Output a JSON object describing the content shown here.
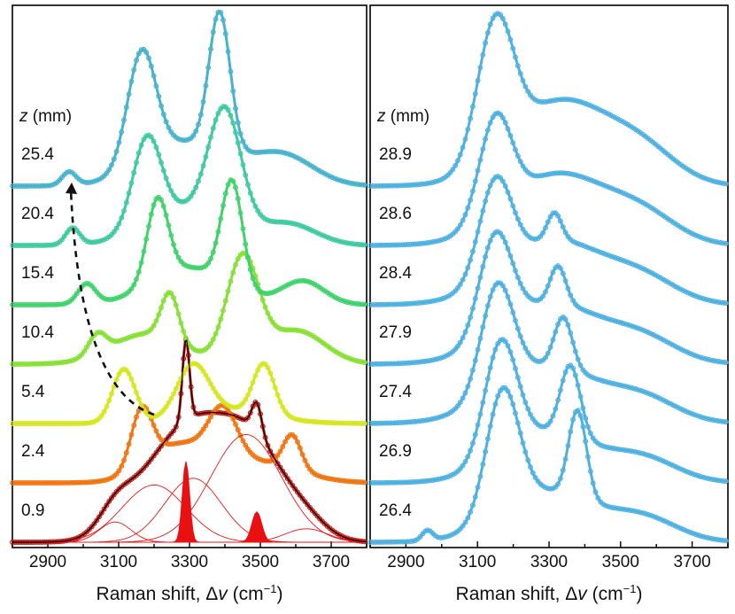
{
  "figure": {
    "xlabel": "Raman shift, Δν (cm⁻¹)"
  },
  "chart_data": [
    {
      "type": "line",
      "title": "",
      "xlabel_parts": {
        "main": "Raman shift, Δ",
        "var": "v",
        "unit_pre": " (cm",
        "exp": "−1",
        "unit_post": ")"
      },
      "ylabel": "z (mm)",
      "zlabel": {
        "var": "z",
        "unit": " (mm)"
      },
      "xlim": [
        2800,
        3800
      ],
      "xticks": [
        2900,
        3100,
        3300,
        3500,
        3700
      ],
      "curve_labels": [
        "0.9",
        "2.4",
        "5.4",
        "10.4",
        "15.4",
        "20.4",
        "25.4"
      ],
      "series": [
        {
          "name": "0.9",
          "color": "#c8130c",
          "baseline": 0,
          "peaks": [
            [
              3090,
              45,
              0.12
            ],
            [
              3200,
              90,
              0.34
            ],
            [
              3310,
              80,
              0.38
            ],
            [
              3460,
              100,
              0.64
            ],
            [
              3290,
              10,
              0.48
            ],
            [
              3490,
              14,
              0.18
            ],
            [
              3630,
              60,
              0.08
            ]
          ]
        },
        {
          "name": "2.4",
          "color": "#f07410",
          "baseline": 1,
          "peaks": [
            [
              3165,
              30,
              0.34
            ],
            [
              3270,
              90,
              0.22
            ],
            [
              3395,
              40,
              0.3
            ],
            [
              3590,
              25,
              0.2
            ],
            [
              3500,
              110,
              0.12
            ]
          ]
        },
        {
          "name": "5.4",
          "color": "#d6e61e",
          "baseline": 2,
          "peaks": [
            [
              3115,
              32,
              0.32
            ],
            [
              3310,
              45,
              0.3
            ],
            [
              3510,
              30,
              0.3
            ],
            [
              3410,
              120,
              0.08
            ]
          ]
        },
        {
          "name": "10.4",
          "color": "#86e034",
          "baseline": 3,
          "peaks": [
            [
              3040,
              25,
              0.12
            ],
            [
              3180,
              100,
              0.18
            ],
            [
              3245,
              25,
              0.28
            ],
            [
              3450,
              45,
              0.62
            ],
            [
              3600,
              80,
              0.2
            ]
          ]
        },
        {
          "name": "15.4",
          "color": "#3fd26a",
          "baseline": 4,
          "peaks": [
            [
              3010,
              25,
              0.12
            ],
            [
              3210,
              30,
              0.48
            ],
            [
              3300,
              110,
              0.22
            ],
            [
              3420,
              30,
              0.62
            ],
            [
              3620,
              60,
              0.14
            ]
          ]
        },
        {
          "name": "20.4",
          "color": "#3ec9a0",
          "baseline": 5,
          "peaks": [
            [
              2970,
              20,
              0.1
            ],
            [
              3180,
              40,
              0.52
            ],
            [
              3300,
              120,
              0.22
            ],
            [
              3400,
              45,
              0.66
            ],
            [
              3580,
              80,
              0.12
            ]
          ]
        },
        {
          "name": "25.4",
          "color": "#46b2cc",
          "baseline": 6,
          "peaks": [
            [
              2960,
              20,
              0.08
            ],
            [
              3165,
              40,
              0.66
            ],
            [
              3290,
              120,
              0.26
            ],
            [
              3385,
              30,
              0.82
            ],
            [
              3560,
              90,
              0.18
            ]
          ]
        }
      ],
      "annotation": {
        "type": "dashed-arrow",
        "from_curve": "2.4",
        "to_curve": "25.4"
      }
    },
    {
      "type": "line",
      "title": "",
      "xlabel_parts": {
        "main": "Raman shift, Δ",
        "var": "v",
        "unit_pre": "  (cm",
        "exp": "−1",
        "unit_post": ")"
      },
      "ylabel": "z (mm)",
      "zlabel": {
        "var": "z",
        "unit": " (mm)"
      },
      "xlim": [
        2800,
        3800
      ],
      "xticks": [
        2900,
        3100,
        3300,
        3500,
        3700
      ],
      "curve_labels": [
        "26.4",
        "26.9",
        "27.4",
        "27.9",
        "28.4",
        "28.6",
        "28.9"
      ],
      "series": [
        {
          "name": "26.4",
          "color": "#4db0e0",
          "baseline": 0,
          "peaks": [
            [
              3170,
              45,
              0.72
            ],
            [
              3290,
              130,
              0.3
            ],
            [
              3380,
              25,
              0.52
            ],
            [
              3560,
              100,
              0.14
            ],
            [
              2960,
              15,
              0.06
            ]
          ]
        },
        {
          "name": "26.9",
          "color": "#4db0e0",
          "baseline": 1,
          "peaks": [
            [
              3165,
              45,
              0.66
            ],
            [
              3290,
              130,
              0.3
            ],
            [
              3360,
              28,
              0.42
            ],
            [
              3560,
              100,
              0.14
            ]
          ]
        },
        {
          "name": "27.4",
          "color": "#4db0e0",
          "baseline": 2,
          "peaks": [
            [
              3155,
              45,
              0.62
            ],
            [
              3290,
              140,
              0.34
            ],
            [
              3340,
              25,
              0.3
            ],
            [
              3560,
              100,
              0.14
            ]
          ]
        },
        {
          "name": "27.9",
          "color": "#4db0e0",
          "baseline": 3,
          "peaks": [
            [
              3150,
              45,
              0.58
            ],
            [
              3300,
              140,
              0.36
            ],
            [
              3325,
              22,
              0.22
            ],
            [
              3560,
              100,
              0.14
            ]
          ]
        },
        {
          "name": "28.4",
          "color": "#4db0e0",
          "baseline": 4,
          "peaks": [
            [
              3150,
              45,
              0.56
            ],
            [
              3310,
              140,
              0.38
            ],
            [
              3315,
              20,
              0.16
            ],
            [
              3560,
              100,
              0.14
            ]
          ]
        },
        {
          "name": "28.6",
          "color": "#4db0e0",
          "baseline": 5,
          "peaks": [
            [
              3150,
              45,
              0.58
            ],
            [
              3320,
              140,
              0.42
            ],
            [
              3560,
              100,
              0.16
            ]
          ]
        },
        {
          "name": "28.9",
          "color": "#4db0e0",
          "baseline": 6,
          "peaks": [
            [
              3150,
              50,
              0.8
            ],
            [
              3330,
              140,
              0.5
            ],
            [
              3560,
              100,
              0.18
            ]
          ]
        }
      ]
    }
  ]
}
